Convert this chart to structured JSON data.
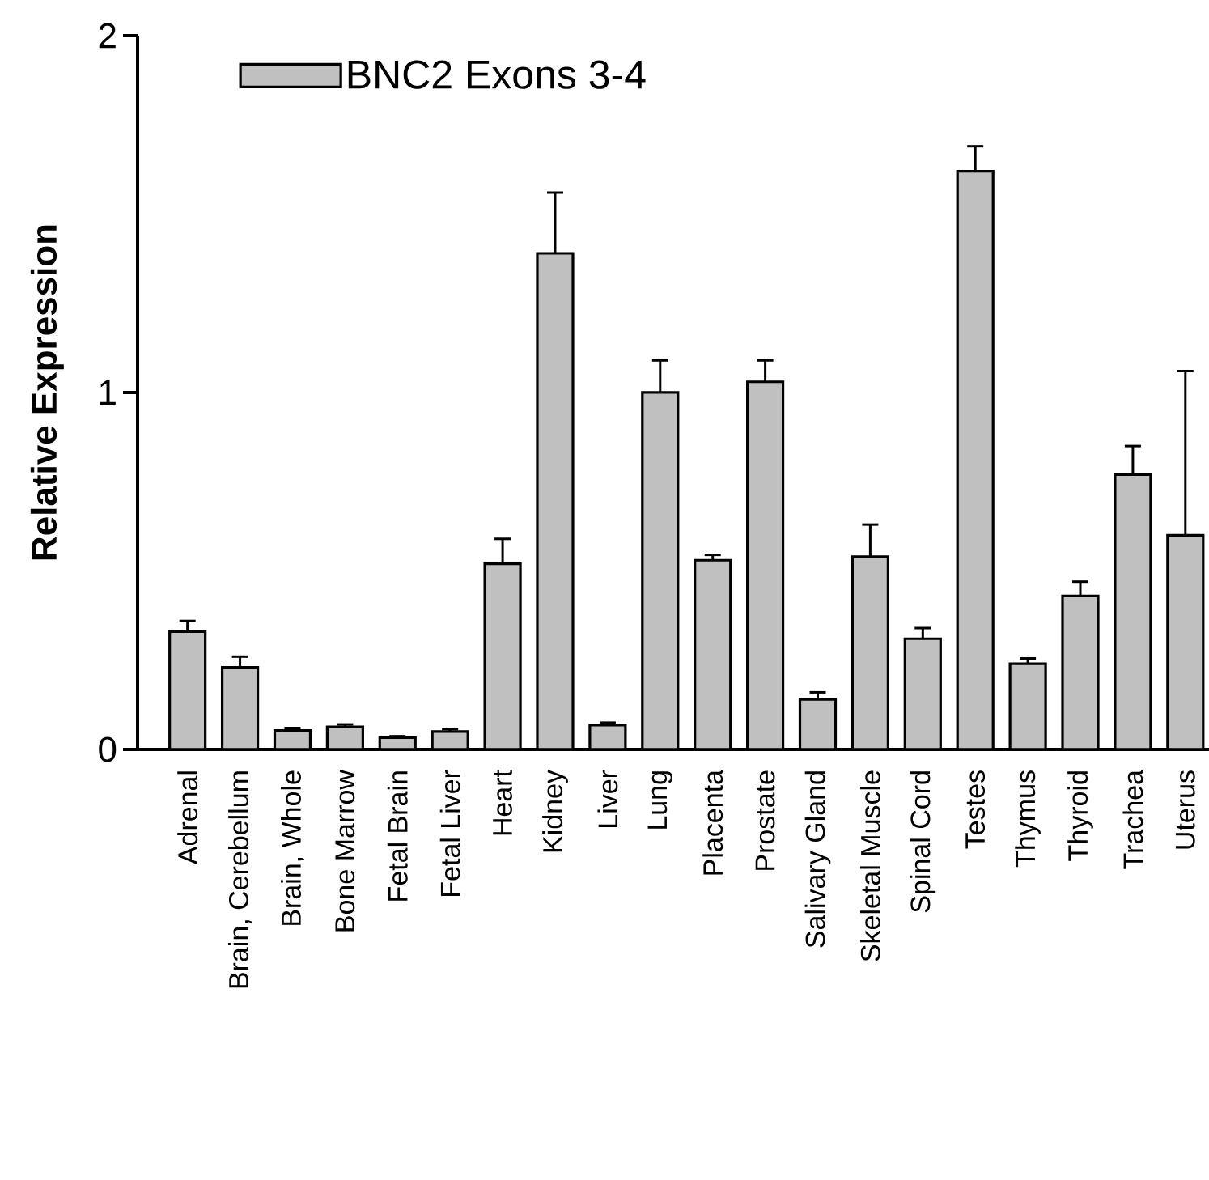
{
  "chart_data": {
    "type": "bar",
    "ylabel": "Relative Expression",
    "categories": [
      "Adrenal",
      "Brain, Cerebellum",
      "Brain, Whole",
      "Bone Marrow",
      "Fetal Brain",
      "Fetal Liver",
      "Heart",
      "Kidney",
      "Liver",
      "Lung",
      "Placenta",
      "Prostate",
      "Salivary Gland",
      "Skeletal Muscle",
      "Spinal Cord",
      "Testes",
      "Thymus",
      "Thyroid",
      "Trachea",
      "Uterus"
    ],
    "series": [
      {
        "name": "BNC2 Exons 3-4",
        "color": "#c0c0c0",
        "values": [
          0.33,
          0.23,
          0.053,
          0.063,
          0.033,
          0.05,
          0.52,
          1.39,
          0.068,
          1.0,
          0.53,
          1.03,
          0.14,
          0.54,
          0.31,
          1.62,
          0.24,
          0.43,
          0.77,
          0.6
        ],
        "errors": [
          0.03,
          0.03,
          0.007,
          0.007,
          0.004,
          0.007,
          0.07,
          0.17,
          0.007,
          0.09,
          0.015,
          0.06,
          0.02,
          0.09,
          0.03,
          0.07,
          0.015,
          0.04,
          0.08,
          0.46
        ]
      }
    ],
    "ylim": [
      0,
      2
    ],
    "yticks": [
      0,
      1,
      2
    ],
    "legend": "top left"
  }
}
